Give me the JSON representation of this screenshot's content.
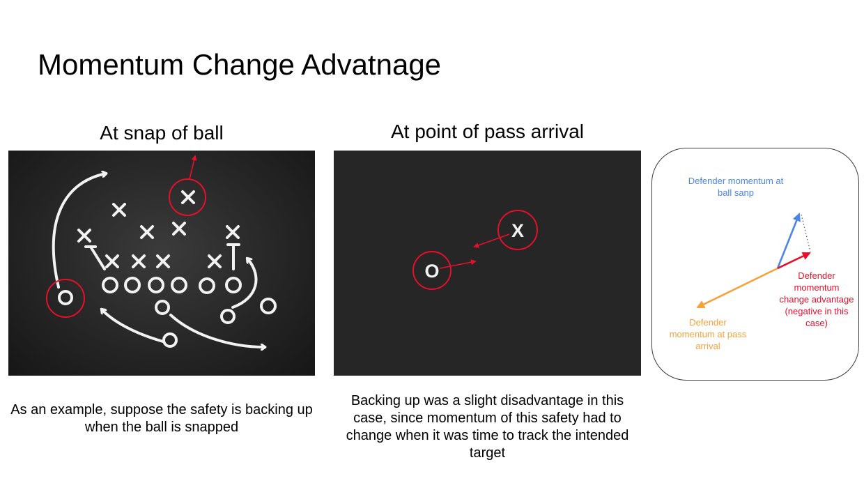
{
  "title": "Momentum Change Advatnage",
  "panels": {
    "snap": {
      "heading": "At snap of ball",
      "caption": "As an example, suppose the safety is backing up when the ball is snapped"
    },
    "arrival": {
      "heading": "At point of pass arrival",
      "caption": "Backing up was a slight disadvantage in this case, since momentum of this safety had to change when it was time to track the intended target",
      "defender_mark": "X",
      "receiver_mark": "O"
    }
  },
  "vector_diagram": {
    "labels": {
      "snap_momentum": "Defender momentum at ball sanp",
      "change_advantage": "Defender momentum change advantage (negative in this case)",
      "arrival_momentum": "Defender momentum at pass arrival"
    },
    "colors": {
      "snap": "#4a86e8",
      "change": "#e5102b",
      "arrival": "#f6a13a",
      "highlight": "#e5102b"
    }
  }
}
